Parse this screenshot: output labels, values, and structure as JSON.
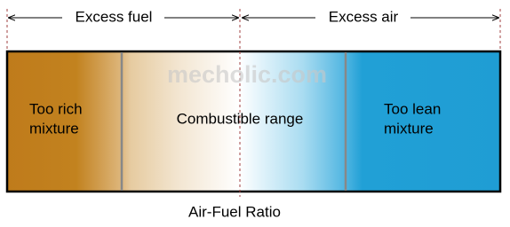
{
  "top_labels": {
    "left": "Excess fuel",
    "right": "Excess air"
  },
  "regions": [
    {
      "label_lines": [
        "Too rich",
        "mixture"
      ]
    },
    {
      "label_lines": [
        "Combustible range"
      ]
    },
    {
      "label_lines": [
        "Too lean",
        "mixture"
      ]
    }
  ],
  "axis_label": "Air-Fuel Ratio",
  "watermark": "mecholic.com"
}
